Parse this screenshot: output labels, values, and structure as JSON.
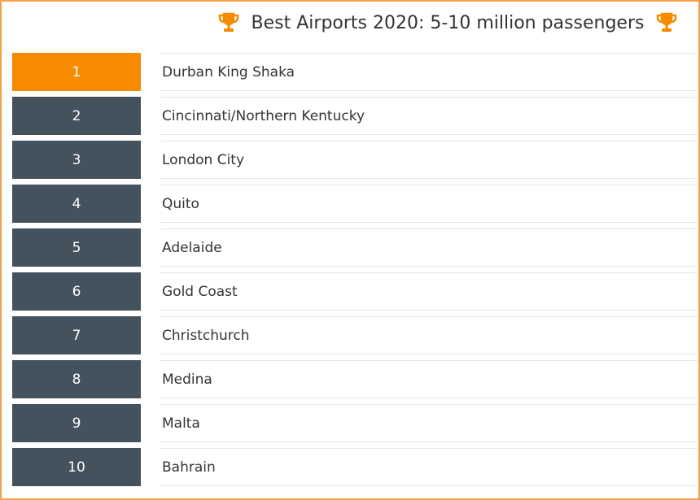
{
  "title": "Best Airports 2020: 5-10 million passengers",
  "rows": [
    {
      "rank": 1,
      "name": "Durban King Shaka"
    },
    {
      "rank": 2,
      "name": "Cincinnati/Northern Kentucky"
    },
    {
      "rank": 3,
      "name": "London City"
    },
    {
      "rank": 4,
      "name": "Quito"
    },
    {
      "rank": 5,
      "name": "Adelaide"
    },
    {
      "rank": 6,
      "name": "Gold Coast"
    },
    {
      "rank": 7,
      "name": "Christchurch"
    },
    {
      "rank": 8,
      "name": "Medina"
    },
    {
      "rank": 9,
      "name": "Malta"
    },
    {
      "rank": 10,
      "name": "Bahrain"
    }
  ]
}
